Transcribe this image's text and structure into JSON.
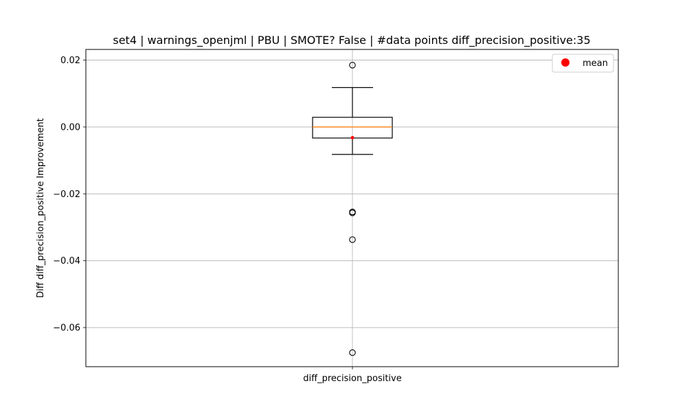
{
  "chart_data": {
    "type": "box",
    "title": "set4 | warnings_openjml | PBU | SMOTE? False | #data points diff_precision_positive:35",
    "xlabel": "",
    "ylabel": "Diff diff_precision_positive Improvement",
    "categories": [
      "diff_precision_positive"
    ],
    "ylim": [
      -0.0717,
      0.0232
    ],
    "yticks": [
      0.02,
      0.0,
      -0.02,
      -0.04,
      -0.06
    ],
    "ytick_labels": [
      "0.02",
      "0.00",
      "−0.02",
      "−0.04",
      "−0.06"
    ],
    "grid": true,
    "box": {
      "whisker_high": 0.0118,
      "q3": 0.0029,
      "median": 0.0,
      "q1": -0.0033,
      "whisker_low": -0.0082,
      "mean": -0.0032,
      "fliers": [
        0.0185,
        -0.0254,
        -0.0257,
        -0.0337,
        -0.0675
      ]
    },
    "legend": {
      "position": "top-right",
      "entries": [
        "mean"
      ]
    },
    "colors": {
      "box": "#000000",
      "median": "#ff7f0e",
      "mean": "#ff0000",
      "grid": "#b0b0b0"
    }
  }
}
